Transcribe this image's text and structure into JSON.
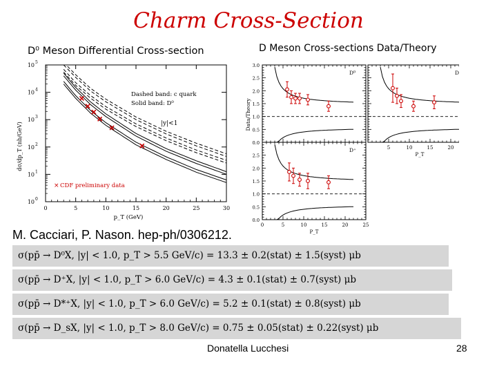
{
  "slide": {
    "title": "Charm Cross-Section",
    "citation": "M. Cacciari, P. Nason. hep-ph/0306212.",
    "author": "Donatella Lucchesi",
    "page_number": "28"
  },
  "formulas": [
    "σ(pp̄ → D⁰X, |y| < 1.0, p_T > 5.5 GeV/c) = 13.3 ± 0.2(stat) ± 1.5(syst) μb",
    "σ(pp̄ → D⁺X, |y| < 1.0, p_T > 6.0 GeV/c) = 4.3 ± 0.1(stat) ± 0.7(syst) μb",
    "σ(pp̄ → D*⁺X, |y| < 1.0, p_T > 6.0 GeV/c) = 5.2 ± 0.1(stat) ± 0.8(syst) μb",
    "σ(pp̄ → D_sX, |y| < 1.0, p_T > 8.0 GeV/c) = 0.75 ± 0.05(stat) ± 0.22(syst) μb"
  ],
  "chart_data": [
    {
      "type": "line",
      "title": "D⁰ Meson Differential Cross-section",
      "xlabel": "p_T (GeV)",
      "ylabel": "dσ/dp_T (nb/GeV)",
      "xlim": [
        0,
        30
      ],
      "ylim_log10": [
        0,
        5
      ],
      "x_ticks": [
        "0",
        "5",
        "10",
        "15",
        "20",
        "25",
        "30"
      ],
      "y_tick_bases": [
        "10",
        "10",
        "10",
        "10",
        "10",
        "10"
      ],
      "y_tick_exps": [
        "0",
        "1",
        "2",
        "3",
        "4",
        "5"
      ],
      "legend_dashed": "Dashed band: c quark",
      "legend_solid": "Solid band: D⁰",
      "rapidity_label": "|y|<1",
      "data_label": "CDF preliminary data",
      "data_marker": "×",
      "series": [
        {
          "name": "CDF preliminary data",
          "x": [
            6,
            7,
            8,
            9,
            11,
            16
          ],
          "y": [
            6000,
            3100,
            1900,
            1050,
            500,
            110
          ]
        },
        {
          "name": "c quark upper",
          "style": "dashed",
          "x": [
            3,
            5,
            7.5,
            10,
            15,
            20,
            25,
            30
          ],
          "y": [
            100000,
            35000,
            11000,
            4500,
            1000,
            300,
            110,
            45
          ]
        },
        {
          "name": "c quark lower",
          "style": "dashed",
          "x": [
            3,
            5,
            7.5,
            10,
            15,
            20,
            25,
            30
          ],
          "y": [
            55000,
            18000,
            6000,
            2400,
            560,
            170,
            62,
            26
          ]
        },
        {
          "name": "D0 upper",
          "style": "solid",
          "x": [
            3,
            5,
            7.5,
            10,
            15,
            20,
            25,
            30
          ],
          "y": [
            40000,
            12000,
            3500,
            1300,
            250,
            70,
            25,
            10
          ]
        },
        {
          "name": "D0 lower",
          "style": "solid",
          "x": [
            3,
            5,
            7.5,
            10,
            15,
            20,
            25,
            30
          ],
          "y": [
            20000,
            6000,
            1700,
            620,
            120,
            35,
            12,
            5
          ]
        }
      ]
    },
    {
      "type": "scatter",
      "title": "D Meson Cross-sections Data/Theory",
      "ylabel": "Data/Theory",
      "xlabel": "P_T",
      "xlim": [
        0,
        25
      ],
      "ylim": [
        0,
        3
      ],
      "x_ticks": [
        "0",
        "5",
        "10",
        "15",
        "20",
        "25"
      ],
      "y_ticks": [
        "0.0",
        "0.5",
        "1.0",
        "1.5",
        "2.0",
        "2.5",
        "3.0"
      ],
      "panels": [
        {
          "label": "D⁰",
          "x": [
            6,
            7,
            8,
            9,
            11,
            16
          ],
          "y": [
            2.05,
            1.75,
            1.7,
            1.7,
            1.65,
            1.4
          ],
          "err": [
            0.3,
            0.25,
            0.2,
            0.2,
            0.2,
            0.2
          ]
        },
        {
          "label": "D*⁺",
          "x": [
            6,
            7,
            8,
            11,
            16
          ],
          "y": [
            2.1,
            1.8,
            1.6,
            1.4,
            1.55
          ],
          "err": [
            0.55,
            0.3,
            0.25,
            0.2,
            0.25
          ]
        },
        {
          "label": "D⁺",
          "x": [
            6.5,
            7.5,
            9,
            11,
            16
          ],
          "y": [
            1.85,
            1.7,
            1.55,
            1.5,
            1.45
          ],
          "err": [
            0.35,
            0.3,
            0.25,
            0.3,
            0.25
          ]
        }
      ]
    }
  ]
}
